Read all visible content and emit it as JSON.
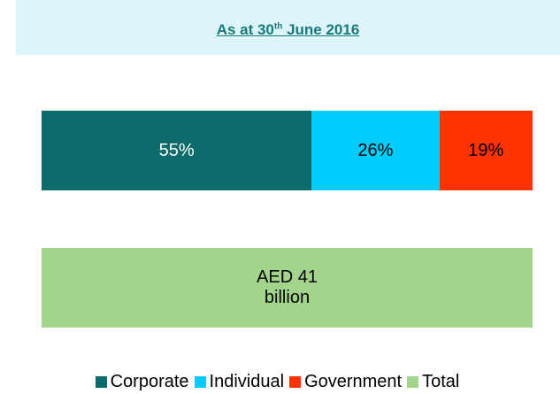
{
  "chart_data": {
    "type": "stacked_bar_100",
    "title_parts": [
      "As at 30",
      "th",
      " June 2016"
    ],
    "series": [
      {
        "name": "Corporate",
        "color": "#0b6a6a",
        "values": [
          55
        ],
        "value_labels": [
          "55%"
        ]
      },
      {
        "name": "Individual",
        "color": "#00ccff",
        "values": [
          26
        ],
        "value_labels": [
          "26%"
        ]
      },
      {
        "name": "Government",
        "color": "#ff3300",
        "values": [
          19
        ],
        "value_labels": [
          "19%"
        ]
      }
    ],
    "total": {
      "name": "Total",
      "color": "#a3d48c",
      "values": [
        41
      ],
      "value_labels": [
        "AED 41 billion"
      ]
    },
    "xlim": [
      0,
      100
    ]
  }
}
